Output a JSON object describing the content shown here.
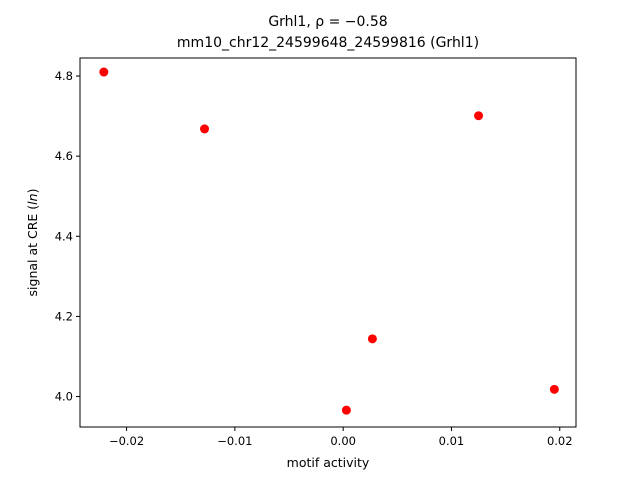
{
  "chart_data": {
    "type": "scatter",
    "title_prefix": "Grhl1, ",
    "title_rho": "ρ = −0.58",
    "subtitle": "mm10_chr12_24599648_24599816 (Grhl1)",
    "xlabel": "motif activity",
    "ylabel_prefix": "signal at CRE (",
    "ylabel_italic": "ln",
    "ylabel_suffix": ")",
    "xlim": [
      -0.0243,
      0.0215
    ],
    "ylim": [
      3.924,
      4.845
    ],
    "xticks": [
      -0.02,
      -0.01,
      0.0,
      0.01,
      0.02
    ],
    "xtick_labels": [
      "−0.02",
      "−0.01",
      "0.00",
      "0.01",
      "0.02"
    ],
    "yticks": [
      4.0,
      4.2,
      4.4,
      4.6,
      4.8
    ],
    "ytick_labels": [
      "4.0",
      "4.2",
      "4.4",
      "4.6",
      "4.8"
    ],
    "grid": false,
    "marker_color": "#ff0000",
    "points": [
      {
        "x": -0.0221,
        "y": 4.81
      },
      {
        "x": -0.0128,
        "y": 4.668
      },
      {
        "x": 0.0003,
        "y": 3.966
      },
      {
        "x": 0.0027,
        "y": 4.144
      },
      {
        "x": 0.0125,
        "y": 4.701
      },
      {
        "x": 0.0195,
        "y": 4.018
      }
    ]
  }
}
